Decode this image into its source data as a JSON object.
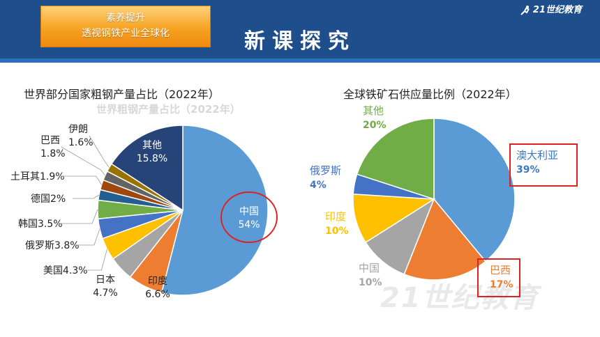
{
  "header": {
    "tag_line1": "素养提升",
    "tag_line2": "透视钢铁产业全球化",
    "title": "新课探究",
    "logo_text": "21世纪教育"
  },
  "chart_data": [
    {
      "type": "pie",
      "title": "世界部分国家粗钢产量占比（2022年）",
      "ghost_title": "世界粗钢产量占比（2022年）",
      "slices": [
        {
          "name": "中国",
          "value": 54,
          "label": "54%",
          "color": "#5b9bd5"
        },
        {
          "name": "印度",
          "value": 6.6,
          "label": "6.6%",
          "color": "#ed7d31"
        },
        {
          "name": "日本",
          "value": 4.7,
          "label": "4.7%",
          "color": "#a5a5a5"
        },
        {
          "name": "美国",
          "value": 4.3,
          "label": "4.3%",
          "color": "#ffc000"
        },
        {
          "name": "俄罗斯",
          "value": 3.8,
          "label": "3.8%",
          "color": "#4472c4"
        },
        {
          "name": "韩国",
          "value": 3.5,
          "label": "3.5%",
          "color": "#70ad47"
        },
        {
          "name": "德国",
          "value": 2,
          "label": "2%",
          "color": "#255e91"
        },
        {
          "name": "土耳其",
          "value": 1.9,
          "label": "1.9%",
          "color": "#9e480e"
        },
        {
          "name": "巴西",
          "value": 1.8,
          "label": "1.8%",
          "color": "#636363"
        },
        {
          "name": "伊朗",
          "value": 1.6,
          "label": "1.6%",
          "color": "#997300"
        },
        {
          "name": "其他",
          "value": 15.8,
          "label": "15.8%",
          "color": "#264478"
        }
      ],
      "highlight": "中国"
    },
    {
      "type": "pie",
      "title": "全球铁矿石供应量比例（2022年）",
      "slices": [
        {
          "name": "澳大利亚",
          "value": 39,
          "label": "39%",
          "color": "#5b9bd5"
        },
        {
          "name": "巴西",
          "value": 17,
          "label": "17%",
          "color": "#ed7d31"
        },
        {
          "name": "中国",
          "value": 10,
          "label": "10%",
          "color": "#a5a5a5"
        },
        {
          "name": "印度",
          "value": 10,
          "label": "10%",
          "color": "#ffc000"
        },
        {
          "name": "俄罗斯",
          "value": 4,
          "label": "4%",
          "color": "#4472c4"
        },
        {
          "name": "其他",
          "value": 20,
          "label": "20%",
          "color": "#70ad47"
        }
      ],
      "highlight": [
        "澳大利亚",
        "巴西"
      ]
    }
  ]
}
